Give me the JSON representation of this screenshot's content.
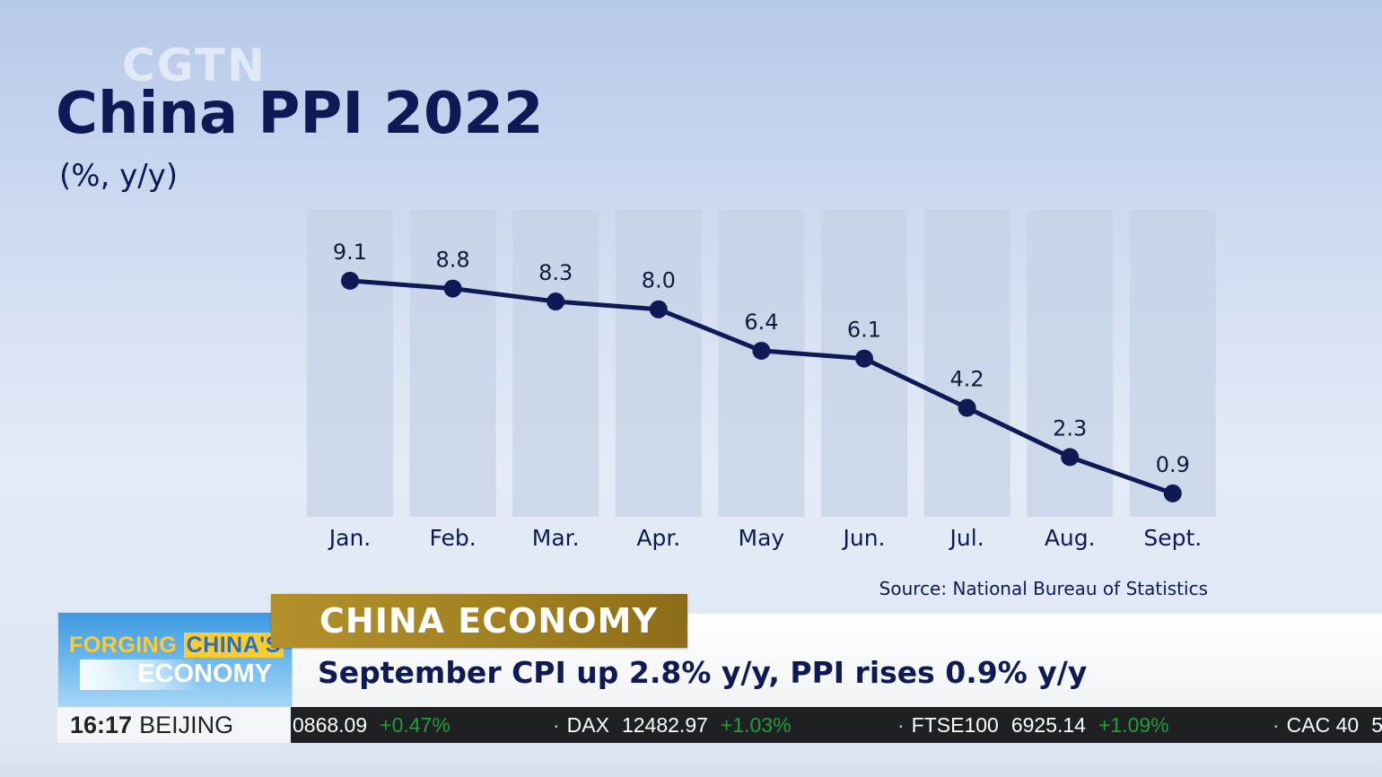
{
  "watermark": "CGTN",
  "title": "China PPI 2022",
  "subtitle": "(%, y/y)",
  "source": "Source: National Bureau of Statistics",
  "chart_data": {
    "type": "line",
    "categories": [
      "Jan.",
      "Feb.",
      "Mar.",
      "Apr.",
      "May",
      "Jun.",
      "Jul.",
      "Aug.",
      "Sept."
    ],
    "values": [
      9.1,
      8.8,
      8.3,
      8.0,
      6.4,
      6.1,
      4.2,
      2.3,
      0.9
    ],
    "value_labels": [
      "9.1",
      "8.8",
      "8.3",
      "8.0",
      "6.4",
      "6.1",
      "4.2",
      "2.3",
      "0.9"
    ],
    "title": "China PPI 2022",
    "ylabel": "(%, y/y)",
    "ylim": [
      0,
      10
    ],
    "grid": false,
    "line_color": "#0d1a55",
    "column_color": "#c6d2e6"
  },
  "lower_third": {
    "logo_line1_a": "FORGING ",
    "logo_line1_b": "CHINA'S",
    "logo_line2": "ECONOMY",
    "time": "16:17",
    "city": "BEIJING",
    "category": "CHINA ECONOMY",
    "headline": "September CPI up 2.8% y/y, PPI rises 0.9% y/y"
  },
  "ticker": [
    {
      "name": "",
      "value": "0868.09",
      "change": "+0.47%"
    },
    {
      "name": "DAX",
      "value": "12482.97",
      "change": "+1.03%"
    },
    {
      "name": "FTSE100",
      "value": "6925.14",
      "change": "+1.09%"
    },
    {
      "name": "CAC 40",
      "value": "5",
      "change": ""
    }
  ]
}
